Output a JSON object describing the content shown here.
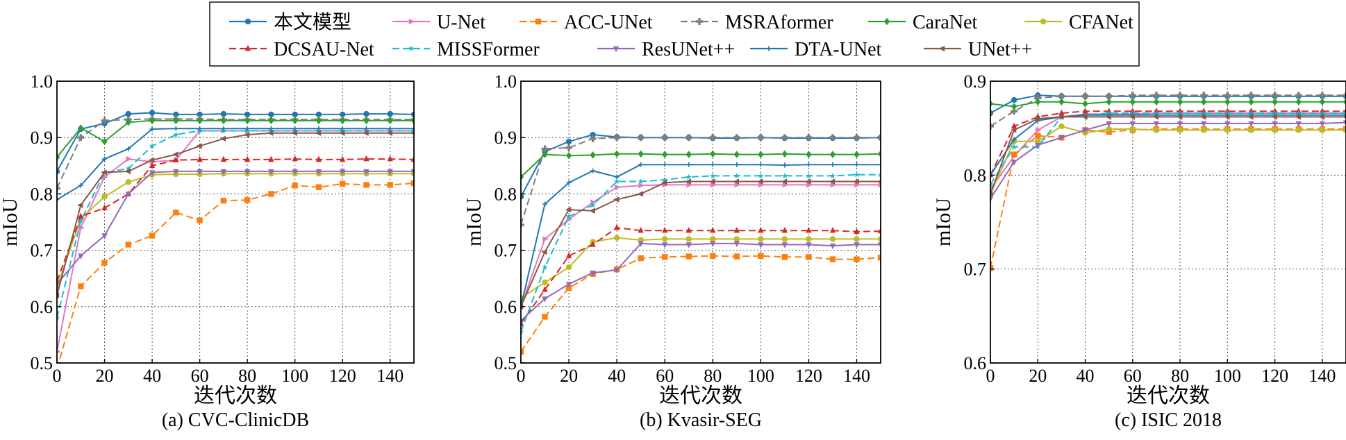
{
  "legend": [
    {
      "name": "本文模型",
      "color": "#1f77b4",
      "marker": "circle",
      "dash": "solid"
    },
    {
      "name": "U-Net",
      "color": "#e377c2",
      "marker": "triangle-right",
      "dash": "solid"
    },
    {
      "name": "ACC-UNet",
      "color": "#ff7f0e",
      "marker": "square",
      "dash": "dashed"
    },
    {
      "name": "MSRAformer",
      "color": "#7f7f7f",
      "marker": "plus",
      "dash": "dashed"
    },
    {
      "name": "CaraNet",
      "color": "#2ca02c",
      "marker": "diamond",
      "dash": "solid"
    },
    {
      "name": "CFANet",
      "color": "#bcbd22",
      "marker": "circle",
      "dash": "solid"
    },
    {
      "name": "DCSAU-Net",
      "color": "#d62728",
      "marker": "triangle-up",
      "dash": "dashed"
    },
    {
      "name": "MISSFormer",
      "color": "#17becf",
      "marker": "star",
      "dash": "dashed"
    },
    {
      "name": "ResUNet++",
      "color": "#9467bd",
      "marker": "triangle-down",
      "dash": "solid"
    },
    {
      "name": "DTA-UNet",
      "color": "#1f77b4",
      "marker": "plus-small",
      "dash": "solid"
    },
    {
      "name": "UNet++",
      "color": "#8c564b",
      "marker": "triangle-left",
      "dash": "solid"
    }
  ],
  "chart_data": [
    {
      "type": "line",
      "caption": "(a) CVC-ClinicDB",
      "xlabel": "迭代次数",
      "ylabel": "mIoU",
      "xlim": [
        0,
        150
      ],
      "ylim": [
        0.5,
        1.0
      ],
      "xticks": [
        0,
        20,
        40,
        60,
        80,
        100,
        120,
        140
      ],
      "yticks": [
        0.5,
        0.6,
        0.7,
        0.8,
        0.9,
        1.0
      ],
      "grid": true,
      "x": [
        0,
        10,
        20,
        30,
        40,
        50,
        60,
        70,
        80,
        90,
        100,
        110,
        120,
        130,
        140,
        150
      ],
      "series": [
        {
          "name": "本文模型",
          "values": [
            0.84,
            0.915,
            0.925,
            0.942,
            0.944,
            0.941,
            0.941,
            0.942,
            0.941,
            0.941,
            0.941,
            0.941,
            0.941,
            0.942,
            0.942,
            0.941
          ]
        },
        {
          "name": "U-Net",
          "values": [
            0.52,
            0.74,
            0.83,
            0.862,
            0.857,
            0.86,
            0.912,
            0.912,
            0.912,
            0.912,
            0.912,
            0.912,
            0.912,
            0.912,
            0.912,
            0.912
          ]
        },
        {
          "name": "ACC-UNet",
          "values": [
            0.49,
            0.636,
            0.678,
            0.71,
            0.726,
            0.767,
            0.753,
            0.788,
            0.789,
            0.8,
            0.815,
            0.812,
            0.818,
            0.816,
            0.816,
            0.819
          ]
        },
        {
          "name": "MSRAformer",
          "values": [
            0.81,
            0.9,
            0.93,
            0.932,
            0.933,
            0.933,
            0.933,
            0.932,
            0.932,
            0.932,
            0.932,
            0.932,
            0.932,
            0.932,
            0.932,
            0.932
          ]
        },
        {
          "name": "CaraNet",
          "values": [
            0.865,
            0.917,
            0.893,
            0.927,
            0.93,
            0.93,
            0.93,
            0.93,
            0.93,
            0.93,
            0.93,
            0.93,
            0.93,
            0.93,
            0.93,
            0.93
          ]
        },
        {
          "name": "CFANet",
          "values": [
            0.635,
            0.756,
            0.795,
            0.821,
            0.834,
            0.835,
            0.835,
            0.836,
            0.836,
            0.836,
            0.836,
            0.836,
            0.836,
            0.836,
            0.836,
            0.836
          ]
        },
        {
          "name": "DCSAU-Net",
          "values": [
            0.645,
            0.76,
            0.775,
            0.8,
            0.85,
            0.86,
            0.861,
            0.861,
            0.861,
            0.861,
            0.862,
            0.861,
            0.861,
            0.862,
            0.862,
            0.861
          ]
        },
        {
          "name": "MISSFormer",
          "values": [
            0.58,
            0.752,
            0.838,
            0.845,
            0.885,
            0.905,
            0.912,
            0.912,
            0.912,
            0.912,
            0.912,
            0.912,
            0.912,
            0.912,
            0.912,
            0.912
          ]
        },
        {
          "name": "ResUNet++",
          "values": [
            0.64,
            0.69,
            0.726,
            0.8,
            0.838,
            0.84,
            0.84,
            0.84,
            0.84,
            0.84,
            0.84,
            0.84,
            0.84,
            0.84,
            0.84,
            0.84
          ]
        },
        {
          "name": "DTA-UNet",
          "values": [
            0.79,
            0.815,
            0.862,
            0.88,
            0.915,
            0.916,
            0.916,
            0.916,
            0.916,
            0.916,
            0.916,
            0.916,
            0.916,
            0.916,
            0.916,
            0.916
          ]
        },
        {
          "name": "UNet++",
          "values": [
            0.62,
            0.78,
            0.838,
            0.84,
            0.86,
            0.87,
            0.885,
            0.898,
            0.905,
            0.908,
            0.908,
            0.908,
            0.908,
            0.908,
            0.908,
            0.908
          ]
        }
      ]
    },
    {
      "type": "line",
      "caption": "(b) Kvasir-SEG",
      "xlabel": "迭代次数",
      "ylabel": "mIoU",
      "xlim": [
        0,
        150
      ],
      "ylim": [
        0.5,
        1.0
      ],
      "xticks": [
        0,
        20,
        40,
        60,
        80,
        100,
        120,
        140
      ],
      "yticks": [
        0.5,
        0.6,
        0.7,
        0.8,
        0.9,
        1.0
      ],
      "grid": true,
      "x": [
        0,
        10,
        20,
        30,
        40,
        50,
        60,
        70,
        80,
        90,
        100,
        110,
        120,
        130,
        140,
        150
      ],
      "series": [
        {
          "name": "本文模型",
          "values": [
            0.795,
            0.875,
            0.893,
            0.905,
            0.901,
            0.9,
            0.9,
            0.9,
            0.899,
            0.899,
            0.9,
            0.899,
            0.899,
            0.899,
            0.899,
            0.9
          ]
        },
        {
          "name": "U-Net",
          "values": [
            0.6,
            0.72,
            0.755,
            0.785,
            0.812,
            0.815,
            0.816,
            0.816,
            0.816,
            0.816,
            0.816,
            0.816,
            0.816,
            0.816,
            0.816,
            0.816
          ]
        },
        {
          "name": "ACC-UNet",
          "values": [
            0.52,
            0.582,
            0.633,
            0.658,
            0.666,
            0.686,
            0.688,
            0.689,
            0.69,
            0.689,
            0.69,
            0.688,
            0.688,
            0.684,
            0.684,
            0.687
          ]
        },
        {
          "name": "MSRAformer",
          "values": [
            0.745,
            0.88,
            0.882,
            0.898,
            0.9,
            0.9,
            0.9,
            0.9,
            0.9,
            0.9,
            0.9,
            0.9,
            0.9,
            0.9,
            0.9,
            0.9
          ]
        },
        {
          "name": "CaraNet",
          "values": [
            0.83,
            0.87,
            0.868,
            0.869,
            0.871,
            0.871,
            0.87,
            0.87,
            0.871,
            0.87,
            0.87,
            0.871,
            0.87,
            0.87,
            0.87,
            0.871
          ]
        },
        {
          "name": "CFANet",
          "values": [
            0.615,
            0.643,
            0.67,
            0.715,
            0.722,
            0.718,
            0.72,
            0.72,
            0.72,
            0.72,
            0.72,
            0.72,
            0.72,
            0.72,
            0.72,
            0.72
          ]
        },
        {
          "name": "DCSAU-Net",
          "values": [
            0.57,
            0.63,
            0.69,
            0.71,
            0.74,
            0.735,
            0.735,
            0.735,
            0.735,
            0.735,
            0.735,
            0.735,
            0.735,
            0.735,
            0.733,
            0.734
          ]
        },
        {
          "name": "MISSFormer",
          "values": [
            0.555,
            0.67,
            0.76,
            0.78,
            0.822,
            0.822,
            0.825,
            0.83,
            0.832,
            0.832,
            0.832,
            0.832,
            0.832,
            0.832,
            0.834,
            0.834
          ]
        },
        {
          "name": "ResUNet++",
          "values": [
            0.575,
            0.614,
            0.64,
            0.66,
            0.665,
            0.712,
            0.71,
            0.71,
            0.712,
            0.712,
            0.71,
            0.71,
            0.71,
            0.708,
            0.71,
            0.71
          ]
        },
        {
          "name": "DTA-UNet",
          "values": [
            0.6,
            0.782,
            0.82,
            0.841,
            0.83,
            0.852,
            0.852,
            0.852,
            0.852,
            0.852,
            0.852,
            0.851,
            0.852,
            0.852,
            0.852,
            0.852
          ]
        },
        {
          "name": "UNet++",
          "values": [
            0.6,
            0.697,
            0.772,
            0.77,
            0.79,
            0.8,
            0.82,
            0.822,
            0.822,
            0.822,
            0.822,
            0.822,
            0.822,
            0.822,
            0.822,
            0.822
          ]
        }
      ]
    },
    {
      "type": "line",
      "caption": "(c) ISIC 2018",
      "xlabel": "迭代次数",
      "ylabel": "mIoU",
      "xlim": [
        0,
        150
      ],
      "ylim": [
        0.6,
        0.9
      ],
      "xticks": [
        0,
        20,
        40,
        60,
        80,
        100,
        120,
        140
      ],
      "yticks": [
        0.6,
        0.7,
        0.8,
        0.9
      ],
      "grid": true,
      "x": [
        0,
        10,
        20,
        30,
        40,
        50,
        60,
        70,
        80,
        90,
        100,
        110,
        120,
        130,
        140,
        150
      ],
      "series": [
        {
          "name": "本文模型",
          "values": [
            0.866,
            0.88,
            0.885,
            0.884,
            0.884,
            0.884,
            0.884,
            0.884,
            0.884,
            0.884,
            0.884,
            0.884,
            0.884,
            0.884,
            0.884,
            0.884
          ]
        },
        {
          "name": "U-Net",
          "values": [
            0.785,
            0.82,
            0.848,
            0.862,
            0.865,
            0.865,
            0.865,
            0.866,
            0.866,
            0.866,
            0.866,
            0.866,
            0.866,
            0.866,
            0.866,
            0.866
          ]
        },
        {
          "name": "ACC-UNet",
          "values": [
            0.701,
            0.822,
            0.842,
            0.84,
            0.848,
            0.846,
            0.848,
            0.849,
            0.849,
            0.849,
            0.849,
            0.849,
            0.849,
            0.849,
            0.849,
            0.849
          ]
        },
        {
          "name": "MSRAformer",
          "values": [
            0.852,
            0.868,
            0.882,
            0.884,
            0.884,
            0.884,
            0.885,
            0.885,
            0.885,
            0.885,
            0.885,
            0.885,
            0.885,
            0.885,
            0.885,
            0.885
          ]
        },
        {
          "name": "CaraNet",
          "values": [
            0.876,
            0.873,
            0.878,
            0.878,
            0.876,
            0.878,
            0.878,
            0.878,
            0.878,
            0.878,
            0.878,
            0.878,
            0.878,
            0.878,
            0.878,
            0.878
          ]
        },
        {
          "name": "CFANet",
          "values": [
            0.78,
            0.836,
            0.836,
            0.852,
            0.845,
            0.849,
            0.849,
            0.848,
            0.848,
            0.848,
            0.848,
            0.848,
            0.848,
            0.848,
            0.848,
            0.848
          ]
        },
        {
          "name": "DCSAU-Net",
          "values": [
            0.8,
            0.852,
            0.862,
            0.866,
            0.868,
            0.868,
            0.868,
            0.868,
            0.868,
            0.868,
            0.868,
            0.868,
            0.868,
            0.868,
            0.868,
            0.868
          ]
        },
        {
          "name": "MISSFormer",
          "values": [
            0.79,
            0.83,
            0.83,
            0.862,
            0.864,
            0.866,
            0.866,
            0.866,
            0.866,
            0.866,
            0.866,
            0.866,
            0.866,
            0.866,
            0.866,
            0.866
          ]
        },
        {
          "name": "ResUNet++",
          "values": [
            0.775,
            0.814,
            0.832,
            0.84,
            0.848,
            0.855,
            0.855,
            0.855,
            0.855,
            0.855,
            0.855,
            0.855,
            0.855,
            0.855,
            0.855,
            0.856
          ]
        },
        {
          "name": "DTA-UNet",
          "values": [
            0.8,
            0.838,
            0.858,
            0.862,
            0.864,
            0.864,
            0.864,
            0.864,
            0.864,
            0.864,
            0.864,
            0.864,
            0.864,
            0.864,
            0.864,
            0.864
          ]
        },
        {
          "name": "UNet++",
          "values": [
            0.78,
            0.848,
            0.86,
            0.862,
            0.862,
            0.862,
            0.862,
            0.862,
            0.862,
            0.862,
            0.862,
            0.862,
            0.862,
            0.862,
            0.862,
            0.862
          ]
        }
      ]
    }
  ]
}
